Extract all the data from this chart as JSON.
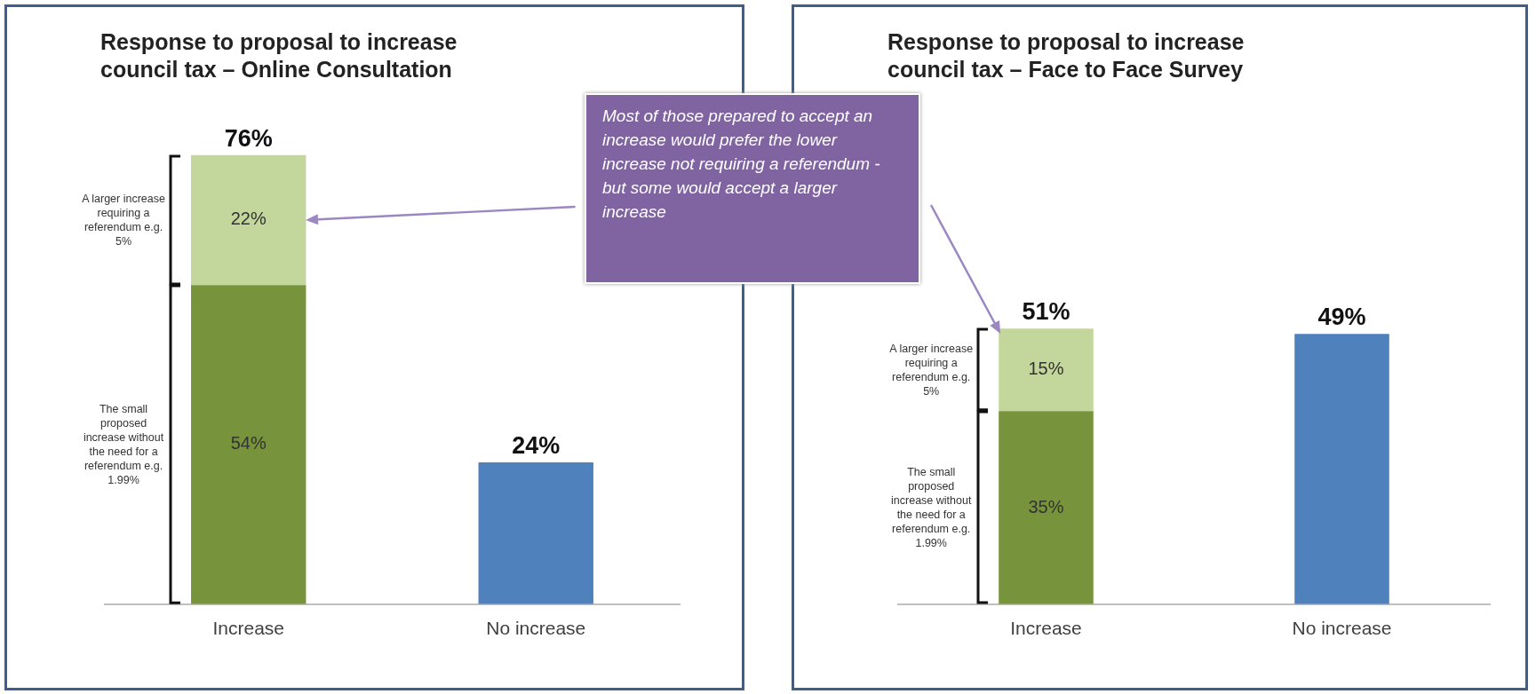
{
  "chart_data": [
    {
      "type": "bar",
      "title": "Response to proposal to increase council tax – Online Consultation",
      "categories": [
        "Increase",
        "No increase"
      ],
      "stacked": true,
      "tick_labels": "x",
      "legend": false,
      "grid": false,
      "series": [
        {
          "name": "The small proposed increase without the need for a referendum e.g. 1.99%",
          "color": "#77933c",
          "values": [
            54,
            null
          ],
          "value_labels": [
            "54%",
            null
          ]
        },
        {
          "name": "A larger increase requiring a referendum e.g. 5%",
          "color": "#c3d69b",
          "values": [
            22,
            null
          ],
          "value_labels": [
            "22%",
            null
          ]
        },
        {
          "color": "#4f81bd",
          "values": [
            null,
            24
          ]
        }
      ],
      "totals": [
        "76%",
        "24%"
      ],
      "annotations": [
        "Most of those prepared to accept an increase would prefer the lower increase not requiring a referendum - but some would accept a larger increase"
      ]
    },
    {
      "type": "bar",
      "title": "Response to proposal to increase council tax – Face to Face Survey",
      "categories": [
        "Increase",
        "No increase"
      ],
      "stacked": true,
      "tick_labels": "x",
      "legend": false,
      "grid": false,
      "series": [
        {
          "name": "The small proposed increase without the need for a referendum e.g. 1.99%",
          "color": "#77933c",
          "values": [
            35,
            null
          ],
          "value_labels": [
            "35%",
            null
          ]
        },
        {
          "name": "A larger increase requiring a referendum e.g. 5%",
          "color": "#c3d69b",
          "values": [
            15,
            null
          ],
          "value_labels": [
            "15%",
            null
          ]
        },
        {
          "color": "#4f81bd",
          "values": [
            null,
            49
          ]
        }
      ],
      "totals": [
        "51%",
        "49%"
      ]
    }
  ]
}
